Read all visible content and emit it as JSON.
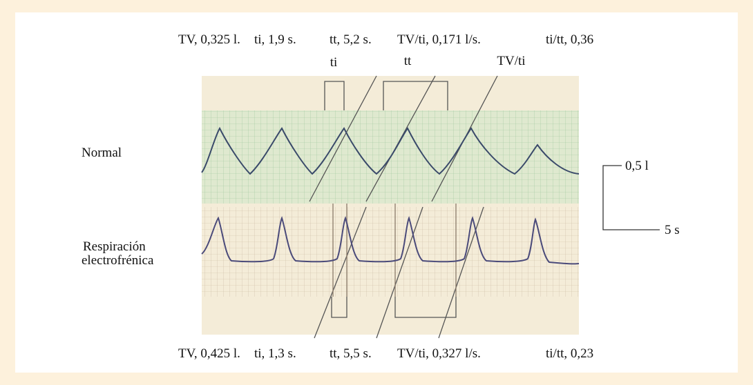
{
  "top": {
    "tv": "TV, 0,325 l.",
    "ti": "ti, 1,9 s.",
    "tt": "tt, 5,2 s.",
    "tvti": "TV/ti, 0,171 l/s.",
    "titt": "ti/tt, 0,36"
  },
  "markers": {
    "ti": "ti",
    "tt": "tt",
    "tvti": "TV/ti"
  },
  "traces": {
    "normal": "Normal",
    "electro_1": "Respiración",
    "electro_2": "electrofrénica"
  },
  "scale": {
    "volume": "0,5 l",
    "time": "5 s"
  },
  "bottom": {
    "tv": "TV, 0,425 l.",
    "ti": "ti, 1,3 s.",
    "tt": "tt, 5,5 s.",
    "tvti": "TV/ti, 0,327 l/s.",
    "titt": "ti/tt, 0,23"
  }
}
